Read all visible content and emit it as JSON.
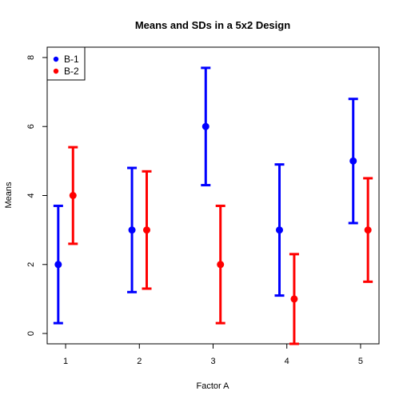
{
  "chart_data": {
    "type": "scatter",
    "title": "Means and SDs in a 5x2 Design",
    "xlabel": "Factor A",
    "ylabel": "Means",
    "categories": [
      "1",
      "2",
      "3",
      "4",
      "5"
    ],
    "xlim": [
      0.75,
      5.25
    ],
    "ylim": [
      -0.3,
      8.3
    ],
    "yticks": [
      "0",
      "2",
      "4",
      "6",
      "8"
    ],
    "legend_position": "top-left",
    "series": [
      {
        "name": "B-1",
        "color": "#0000FF",
        "x": [
          0.9,
          1.9,
          2.9,
          3.9,
          4.9
        ],
        "values": [
          2,
          3,
          6,
          3,
          5
        ],
        "lower": [
          0.3,
          1.2,
          4.3,
          1.1,
          3.2
        ],
        "upper": [
          3.7,
          4.8,
          7.7,
          4.9,
          6.8
        ]
      },
      {
        "name": "B-2",
        "color": "#FF0000",
        "x": [
          1.1,
          2.1,
          3.1,
          4.1,
          5.1
        ],
        "values": [
          4,
          3,
          2,
          1,
          3
        ],
        "lower": [
          2.6,
          1.3,
          0.3,
          -0.3,
          1.5
        ],
        "upper": [
          5.4,
          4.7,
          3.7,
          2.3,
          4.5
        ]
      }
    ]
  }
}
